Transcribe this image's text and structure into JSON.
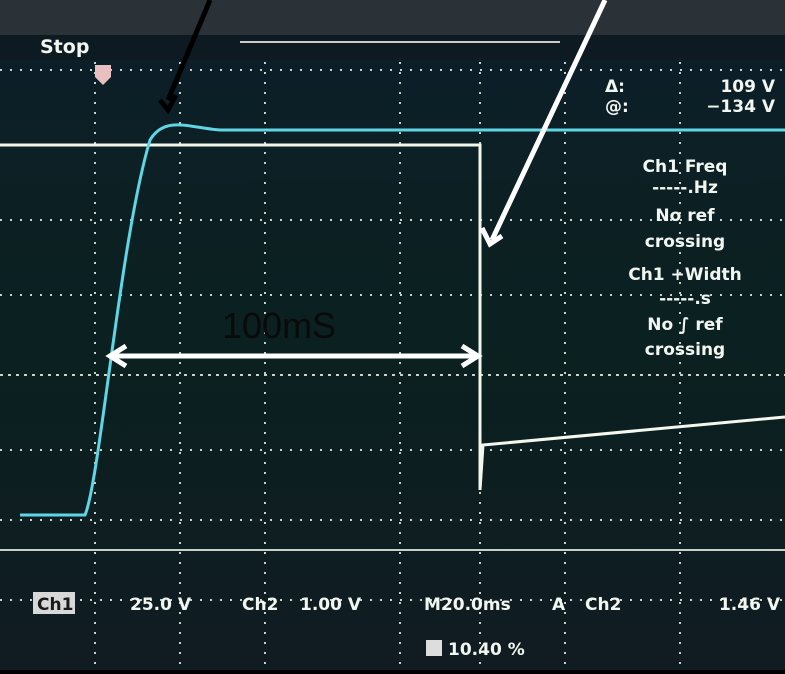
{
  "header": {
    "status": "Stop"
  },
  "cursor": {
    "delta_label": "Δ:",
    "delta_value": "109 V",
    "at_label": "@:",
    "at_value": "−134 V"
  },
  "measurements": [
    {
      "title": "Ch1 Freq",
      "value": "-----.Hz",
      "note_1": "No ref",
      "note_2": "crossing"
    },
    {
      "title": "Ch1 +Width",
      "value": "-----.s",
      "note_1": "No ∫ ref",
      "note_2": "crossing"
    }
  ],
  "annotation": {
    "label": "100mS"
  },
  "readout": {
    "ch1": "Ch1",
    "ch1_scale": "25.0 V",
    "ch2": "Ch2",
    "ch2_scale": "1.00 V",
    "timebase": "M20.0ms",
    "mode": "A",
    "trigger_source": "Ch2",
    "trigger_level": "1.46 V",
    "trigger_position": "10.40 %"
  }
}
